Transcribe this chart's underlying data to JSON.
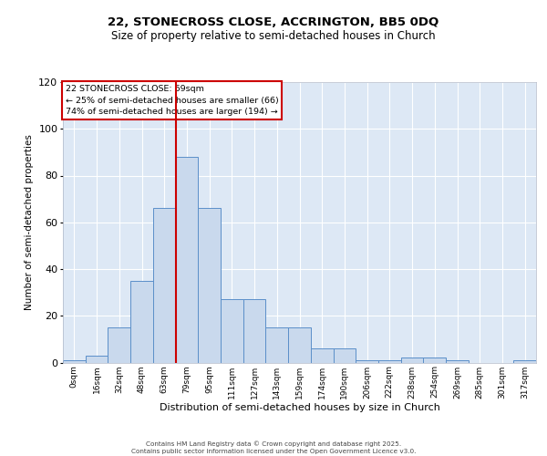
{
  "title1": "22, STONECROSS CLOSE, ACCRINGTON, BB5 0DQ",
  "title2": "Size of property relative to semi-detached houses in Church",
  "xlabel": "Distribution of semi-detached houses by size in Church",
  "ylabel": "Number of semi-detached properties",
  "bin_labels": [
    "0sqm",
    "16sqm",
    "32sqm",
    "48sqm",
    "63sqm",
    "79sqm",
    "95sqm",
    "111sqm",
    "127sqm",
    "143sqm",
    "159sqm",
    "174sqm",
    "190sqm",
    "206sqm",
    "222sqm",
    "238sqm",
    "254sqm",
    "269sqm",
    "285sqm",
    "301sqm",
    "317sqm"
  ],
  "bar_values": [
    1,
    3,
    15,
    35,
    66,
    88,
    66,
    27,
    27,
    15,
    15,
    6,
    6,
    1,
    1,
    2,
    2,
    1,
    0,
    0,
    1
  ],
  "bar_color": "#c9d9ed",
  "bar_edge_color": "#5b8fc9",
  "background_color": "#dde8f5",
  "ylim": [
    0,
    120
  ],
  "yticks": [
    0,
    20,
    40,
    60,
    80,
    100,
    120
  ],
  "property_line_x": 4.5,
  "annotation_title": "22 STONECROSS CLOSE: 69sqm",
  "annotation_line1": "← 25% of semi-detached houses are smaller (66)",
  "annotation_line2": "74% of semi-detached houses are larger (194) →",
  "annotation_box_color": "#ffffff",
  "annotation_box_edge": "#cc0000",
  "property_line_color": "#cc0000",
  "footer1": "Contains HM Land Registry data © Crown copyright and database right 2025.",
  "footer2": "Contains public sector information licensed under the Open Government Licence v3.0."
}
